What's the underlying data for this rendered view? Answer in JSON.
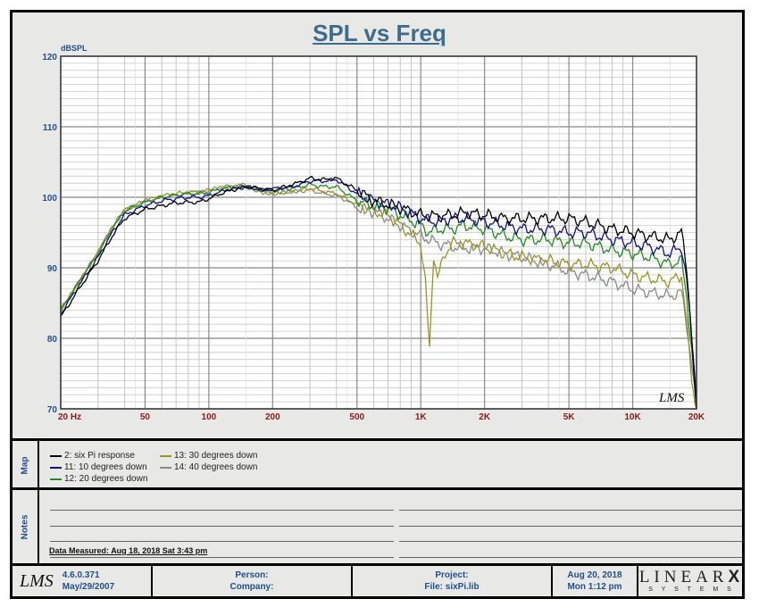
{
  "chart_data": {
    "type": "line",
    "title": "SPL vs Freq",
    "ylabel": "dBSPL",
    "xlabel": "Hz",
    "xscale": "log",
    "xlim": [
      20,
      20000
    ],
    "ylim": [
      70,
      120
    ],
    "grid": true,
    "yticks": [
      {
        "v": 120,
        "label": "120"
      },
      {
        "v": 110,
        "label": "110"
      },
      {
        "v": 100,
        "label": "100"
      },
      {
        "v": 90,
        "label": "90"
      },
      {
        "v": 80,
        "label": "80"
      },
      {
        "v": 70,
        "label": "70"
      }
    ],
    "xticks": [
      {
        "v": 20,
        "label": "20  Hz"
      },
      {
        "v": 50,
        "label": "50"
      },
      {
        "v": 100,
        "label": "100"
      },
      {
        "v": 200,
        "label": "200"
      },
      {
        "v": 500,
        "label": "500"
      },
      {
        "v": 1000,
        "label": "1K"
      },
      {
        "v": 2000,
        "label": "2K"
      },
      {
        "v": 5000,
        "label": "5K"
      },
      {
        "v": 10000,
        "label": "10K"
      },
      {
        "v": 20000,
        "label": "20K"
      }
    ],
    "series": [
      {
        "name": "14: 40 degrees down",
        "color": "#8a8a8a",
        "x": [
          20,
          25,
          30,
          35,
          40,
          50,
          60,
          70,
          80,
          90,
          100,
          120,
          150,
          180,
          200,
          250,
          300,
          350,
          400,
          450,
          500,
          600,
          700,
          800,
          1000,
          1200,
          1400,
          1600,
          2000,
          2500,
          3000,
          4000,
          5000,
          6000,
          8000,
          10000,
          12000,
          15000,
          17000,
          18000,
          19000,
          20000
        ],
        "y": [
          84,
          88.5,
          92.3,
          95.8,
          98.2,
          99.5,
          100,
          100.3,
          100.5,
          100.7,
          101,
          101.5,
          101.8,
          100.7,
          100.5,
          100.8,
          101,
          100.5,
          100.3,
          99.5,
          98.5,
          98,
          97,
          96,
          94.5,
          93.5,
          93,
          92.8,
          92.8,
          92,
          91.5,
          90.5,
          89.5,
          89,
          88,
          87,
          86.5,
          86,
          86.5,
          82,
          76,
          70
        ]
      },
      {
        "name": "13: 30 degrees down",
        "color": "#9a9420",
        "x": [
          20,
          25,
          30,
          35,
          40,
          50,
          60,
          70,
          80,
          90,
          100,
          120,
          150,
          180,
          200,
          250,
          300,
          350,
          400,
          500,
          600,
          700,
          800,
          1000,
          1050,
          1100,
          1150,
          1200,
          1300,
          1400,
          1600,
          2000,
          2500,
          3000,
          4000,
          5000,
          6000,
          8000,
          10000,
          12000,
          15000,
          17000,
          18000,
          19000,
          20000
        ],
        "y": [
          84,
          88.5,
          92.2,
          95.7,
          98.2,
          99.5,
          100.2,
          100.5,
          100.7,
          100.7,
          101,
          101.5,
          101.5,
          100.7,
          100.5,
          100.8,
          101.3,
          100.8,
          100.5,
          99,
          98,
          97.5,
          96,
          93.5,
          88,
          78.5,
          92,
          88.5,
          92,
          93.5,
          93.5,
          93,
          92,
          91.5,
          91,
          90.5,
          90.5,
          90,
          89,
          88.5,
          88,
          89,
          82,
          74,
          70
        ]
      },
      {
        "name": "12: 20 degrees down",
        "color": "#1e8c1e",
        "x": [
          20,
          25,
          30,
          35,
          40,
          50,
          60,
          70,
          80,
          90,
          100,
          120,
          150,
          180,
          200,
          250,
          300,
          350,
          400,
          500,
          600,
          700,
          800,
          1000,
          1100,
          1200,
          1400,
          1600,
          2000,
          2500,
          3000,
          4000,
          5000,
          6000,
          8000,
          10000,
          12000,
          15000,
          17000,
          18000,
          19000,
          20000
        ],
        "y": [
          84,
          88.5,
          92,
          95.5,
          98,
          99.3,
          100,
          100.3,
          100.5,
          100.5,
          100.7,
          101.3,
          101.5,
          101,
          101,
          101.3,
          101.8,
          101.5,
          101.5,
          99.5,
          98.8,
          98.5,
          97.5,
          96,
          95,
          95.5,
          95.5,
          96,
          95.5,
          94.5,
          94,
          94,
          93.5,
          93.5,
          92.5,
          92,
          91.5,
          90.5,
          91,
          86,
          78,
          70
        ]
      },
      {
        "name": "11: 10 degrees down",
        "color": "#10108a",
        "x": [
          20,
          25,
          30,
          35,
          40,
          50,
          60,
          70,
          80,
          90,
          100,
          120,
          150,
          180,
          200,
          250,
          300,
          350,
          400,
          500,
          600,
          700,
          800,
          1000,
          1200,
          1400,
          1600,
          2000,
          2500,
          3000,
          4000,
          5000,
          6000,
          8000,
          10000,
          12000,
          15000,
          17000,
          18000,
          19000,
          20000
        ],
        "y": [
          83.5,
          88,
          91.5,
          95,
          97.5,
          98.8,
          99.5,
          99.8,
          100,
          100,
          100.2,
          101,
          101.5,
          101,
          101.2,
          101.5,
          102.3,
          102.3,
          102.5,
          100.5,
          99.5,
          99,
          98.5,
          97,
          96.5,
          97,
          97,
          96.5,
          96,
          95.5,
          95.5,
          95,
          95,
          94,
          93.5,
          93,
          92,
          93,
          88,
          80,
          70
        ]
      },
      {
        "name": "2: six Pi response",
        "color": "#000000",
        "x": [
          20,
          25,
          30,
          35,
          40,
          50,
          60,
          70,
          80,
          90,
          100,
          120,
          150,
          180,
          200,
          250,
          300,
          350,
          400,
          500,
          600,
          700,
          800,
          1000,
          1200,
          1400,
          1600,
          2000,
          2500,
          3000,
          4000,
          5000,
          6000,
          8000,
          10000,
          12000,
          15000,
          17000,
          18000,
          19000,
          20000
        ],
        "y": [
          83,
          87.5,
          91,
          94.5,
          97,
          98.3,
          98.8,
          99.2,
          99.3,
          99.3,
          99.8,
          100.8,
          101.5,
          101.2,
          101,
          101.8,
          102.7,
          102.5,
          102.7,
          101,
          99.5,
          99,
          98.5,
          97.5,
          97.3,
          97.5,
          97.8,
          97.5,
          97,
          97,
          97,
          97,
          96.5,
          95.5,
          95,
          94.5,
          94,
          95,
          90,
          80,
          70
        ]
      }
    ]
  },
  "map": {
    "label": "Map",
    "legend": [
      {
        "label": "2: six Pi response",
        "color": "#000000"
      },
      {
        "label": "11: 10 degrees down",
        "color": "#10108a"
      },
      {
        "label": "12: 20 degrees down",
        "color": "#1e8c1e"
      },
      {
        "label": "13: 30 degrees down",
        "color": "#9a9420"
      },
      {
        "label": "14: 40 degrees down",
        "color": "#8a8a8a"
      }
    ]
  },
  "notes": {
    "label": "Notes",
    "measured": "Data Measured: Aug 18, 2018  Sat  3:43 pm"
  },
  "watermark": "LMS",
  "footer": {
    "logo": "LMS",
    "version": "4.6.0.371",
    "version_date": "May/29/2007",
    "person": "Person:",
    "company": "Company:",
    "project": "Project:",
    "file": "File: sixPi.lib",
    "date": "Aug 20, 2018",
    "time": "Mon  1:12 pm",
    "brand": "LINEAR",
    "brand_x": "X",
    "brand_sub": "S Y S T E M S"
  }
}
